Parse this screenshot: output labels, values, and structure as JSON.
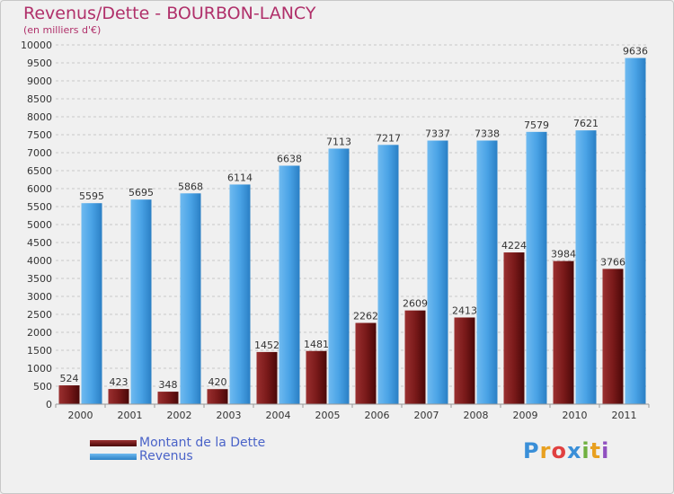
{
  "header": {
    "title": "Revenus/Dette - BOURBON-LANCY",
    "subtitle": "(en milliers d'€)"
  },
  "chart_data": {
    "type": "bar",
    "categories": [
      "2000",
      "2001",
      "2002",
      "2003",
      "2004",
      "2005",
      "2006",
      "2007",
      "2008",
      "2009",
      "2010",
      "2011"
    ],
    "series": [
      {
        "name": "Montant de la Dette",
        "values": [
          524,
          423,
          348,
          420,
          1452,
          1481,
          2262,
          2609,
          2413,
          4224,
          3984,
          3766
        ],
        "color": "#7a1a1a"
      },
      {
        "name": "Revenus",
        "values": [
          5595,
          5695,
          5868,
          6114,
          6638,
          7113,
          7217,
          7337,
          7338,
          7579,
          7621,
          9636
        ],
        "color": "#4aa3e6"
      }
    ],
    "ylim": [
      0,
      10000
    ],
    "ytick_step": 500,
    "grid": true,
    "legend": "bottom-left"
  },
  "logo": {
    "text": "Proxiti"
  },
  "colors": {
    "title": "#b0306a",
    "legend_text": "#4a63c8",
    "background": "#f0f0f0"
  }
}
